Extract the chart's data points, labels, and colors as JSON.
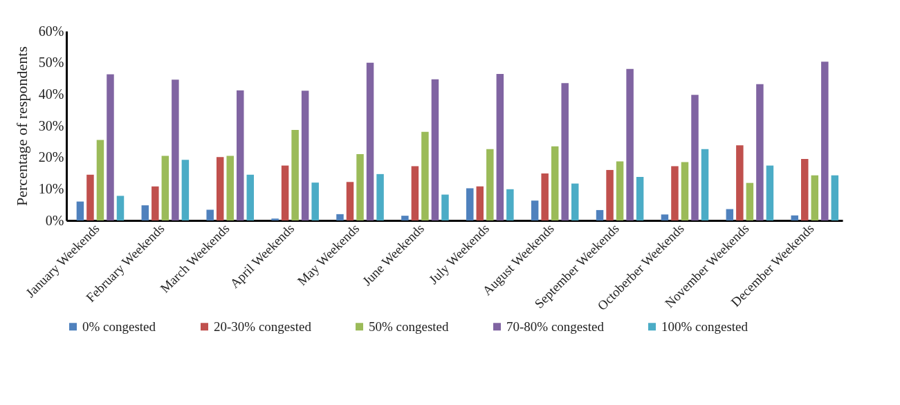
{
  "chart_data": {
    "type": "bar",
    "ylabel": "Percentage of respondents",
    "categories": [
      "January Weekends",
      "February Weekends",
      "March Weekends",
      "April Weekends",
      "May Weekends",
      "June Weekends",
      "July Weekends",
      "August Weekends",
      "September Weekends",
      "Octoberber Weekends",
      "November Weekends",
      "December Weekends"
    ],
    "series": [
      {
        "name": "0% congested",
        "color": "#4f81bd",
        "values": [
          6,
          4.8,
          3.4,
          0.6,
          2,
          1.5,
          10.2,
          6.3,
          3.3,
          1.9,
          3.6,
          1.6
        ]
      },
      {
        "name": "20-30% congested",
        "color": "#c0504d",
        "values": [
          14.5,
          10.8,
          20.1,
          17.4,
          12.2,
          17.2,
          10.8,
          14.9,
          16,
          17.2,
          23.8,
          19.5
        ]
      },
      {
        "name": "50% congested",
        "color": "#9bbb59",
        "values": [
          25.5,
          20.5,
          20.5,
          28.7,
          21,
          28.1,
          22.6,
          23.5,
          18.7,
          18.5,
          11.9,
          14.3
        ]
      },
      {
        "name": "70-80% congested",
        "color": "#8064a2",
        "values": [
          46.3,
          44.6,
          41.2,
          41.1,
          50,
          44.7,
          46.4,
          43.5,
          48,
          39.8,
          43.2,
          50.3
        ]
      },
      {
        "name": "100% congested",
        "color": "#4bacc6",
        "values": [
          7.8,
          19.2,
          14.5,
          12,
          14.7,
          8.2,
          9.9,
          11.7,
          13.8,
          22.6,
          17.4,
          14.3
        ]
      }
    ],
    "ylim": [
      0,
      60
    ],
    "yticks": [
      {
        "value": 0,
        "label": "0%"
      },
      {
        "value": 10,
        "label": "10%"
      },
      {
        "value": 20,
        "label": "20%"
      },
      {
        "value": 30,
        "label": "30%"
      },
      {
        "value": 40,
        "label": "40%"
      },
      {
        "value": 50,
        "label": "50%"
      },
      {
        "value": 60,
        "label": "60%"
      }
    ],
    "grid": false,
    "legend": "bottom"
  }
}
